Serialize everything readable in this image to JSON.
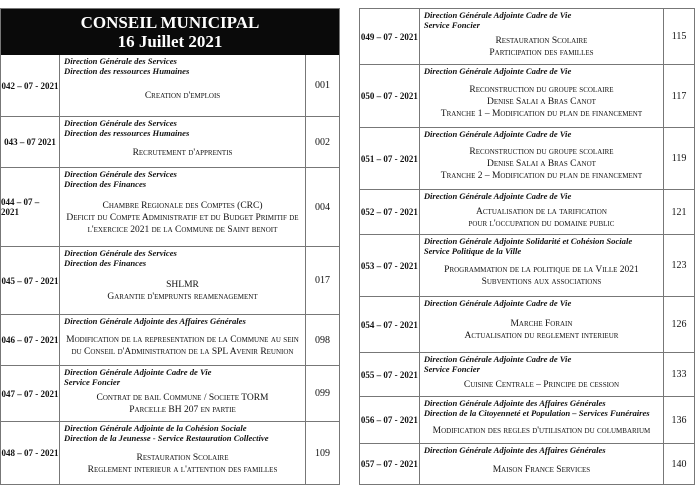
{
  "header": {
    "title": "CONSEIL MUNICIPAL",
    "date": "16 Juillet 2021"
  },
  "left_rows": [
    {
      "num": "042 – 07 - 2021",
      "dirs": [
        "Direction Générale des Services",
        "Direction des ressources Humaines"
      ],
      "body": [
        "Creation d'emplois"
      ],
      "page": "001"
    },
    {
      "num": "043 – 07 2021",
      "dirs": [
        "Direction Générale des Services",
        "Direction des ressources Humaines"
      ],
      "body": [
        "Recrutement d'apprentis"
      ],
      "page": "002"
    },
    {
      "num": "044 – 07 – 2021",
      "dirs": [
        "Direction Générale des Services",
        "Direction des Finances"
      ],
      "body": [
        "Chambre Regionale des Comptes (CRC)",
        "Deficit du Compte Administratif et du Budget Primitif de",
        "l'exercice 2021 de la Commune de Saint benoit"
      ],
      "page": "004"
    },
    {
      "num": "045 – 07 - 2021",
      "dirs": [
        "Direction Générale des Services",
        "Direction des Finances"
      ],
      "body": [
        "SHLMR",
        "Garantie d'emprunts reamenagement"
      ],
      "page": "017"
    },
    {
      "num": "046 – 07 - 2021",
      "dirs": [
        "Direction Générale Adjointe des Affaires Générales"
      ],
      "body": [
        "Modification de la representation de la Commune au sein",
        "du Conseil d'Administration de la SPL Avenir Reunion"
      ],
      "page": "098"
    },
    {
      "num": "047 – 07 - 2021",
      "dirs": [
        "Direction Générale Adjointe Cadre de Vie",
        "Service Foncier"
      ],
      "body": [
        "Contrat de bail Commune / Societe TORM",
        "Parcelle BH 207 en partie"
      ],
      "page": "099"
    },
    {
      "num": "048 – 07 - 2021",
      "dirs": [
        "Direction Générale Adjointe de la Cohésion Sociale",
        "Direction de la Jeunesse - Service Restauration Collective"
      ],
      "body": [
        "Restauration Scolaire",
        "Reglement interieur a l'attention des familles"
      ],
      "page": "109"
    }
  ],
  "right_rows": [
    {
      "num": "049 – 07 - 2021",
      "dirs": [
        "Direction Générale Adjointe Cadre de Vie",
        "Service Foncier"
      ],
      "body": [
        "Restauration Scolaire",
        "Participation des familles"
      ],
      "page": "115"
    },
    {
      "num": "050 – 07 - 2021",
      "dirs": [
        "Direction Générale Adjointe Cadre de Vie"
      ],
      "body": [
        "Reconstruction du groupe scolaire",
        "Denise Salai a Bras Canot",
        "Tranche 1 – Modification du plan de financement"
      ],
      "page": "117"
    },
    {
      "num": "051 – 07 - 2021",
      "dirs": [
        "Direction Générale Adjointe Cadre de Vie"
      ],
      "body": [
        "Reconstruction du groupe scolaire",
        "Denise Salai a Bras Canot",
        "Tranche 2 – Modification du plan de financement"
      ],
      "page": "119"
    },
    {
      "num": "052 – 07 - 2021",
      "dirs": [
        "Direction Générale Adjointe Cadre de Vie"
      ],
      "body": [
        "Actualisation de la tarification",
        "pour l'occupation du domaine public"
      ],
      "page": "121"
    },
    {
      "num": "053 – 07 - 2021",
      "dirs": [
        "Direction Générale Adjointe Solidarité et Cohésion Sociale",
        "Service Politique de la Ville"
      ],
      "body": [
        "Programmation de la politique de la Ville 2021",
        "Subventions aux associations"
      ],
      "page": "123"
    },
    {
      "num": "054 – 07 - 2021",
      "dirs": [
        "Direction Générale Adjointe Cadre de Vie"
      ],
      "body": [
        "Marche Forain",
        "Actualisation du reglement interieur"
      ],
      "page": "126"
    },
    {
      "num": "055 – 07 - 2021",
      "dirs": [
        "Direction Générale Adjointe Cadre de Vie",
        "Service Foncier"
      ],
      "body": [
        "Cuisine Centrale – Principe de cession"
      ],
      "page": "133"
    },
    {
      "num": "056 – 07 - 2021",
      "dirs": [
        "Direction Générale Adjointe des Affaires Générales",
        "Direction de la Citoyenneté et Population – Services Funéraires"
      ],
      "body": [
        "Modification des regles d'utilisation du columbarium"
      ],
      "page": "136"
    },
    {
      "num": "057 – 07 - 2021",
      "dirs": [
        "Direction Générale Adjointe des Affaires Générales"
      ],
      "body": [
        "Maison France Services"
      ],
      "page": "140"
    }
  ]
}
